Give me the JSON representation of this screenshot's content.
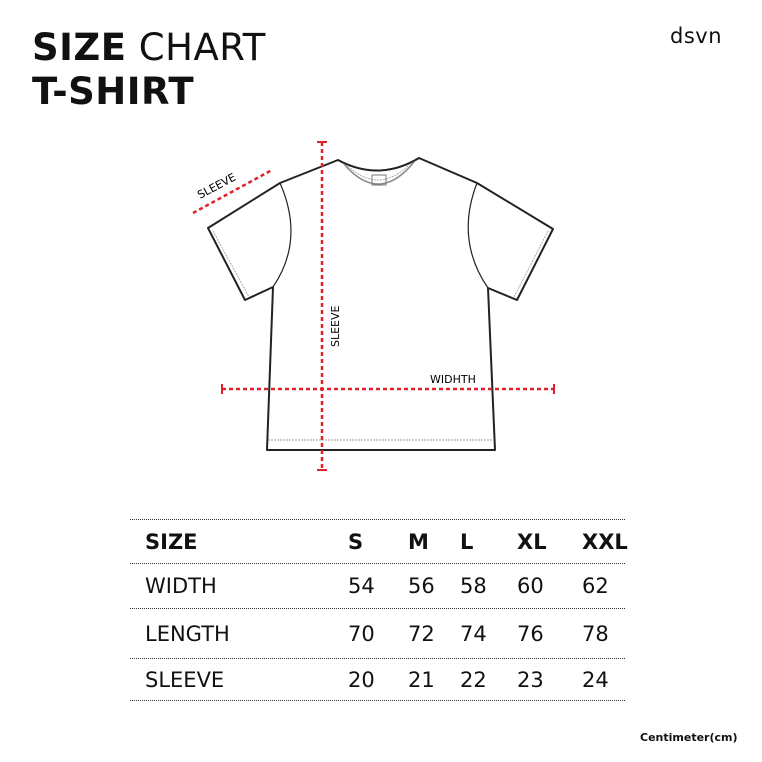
{
  "header": {
    "title_bold": "SIZE",
    "title_light": "CHART",
    "subtitle": "T-SHIRT",
    "logo": "dsvn"
  },
  "diagram": {
    "labels": {
      "sleeve_diagonal": "SLEEVE",
      "sleeve_vertical": "SLEEVE",
      "width": "WIDHTH"
    },
    "measure_color": "#e0202a"
  },
  "table": {
    "header": [
      "SIZE",
      "S",
      "M",
      "L",
      "XL",
      "XXL"
    ],
    "rows": [
      [
        "WIDTH",
        "54",
        "56",
        "58",
        "60",
        "62"
      ],
      [
        "LENGTH",
        "70",
        "72",
        "74",
        "76",
        "78"
      ],
      [
        "SLEEVE",
        "20",
        "21",
        "22",
        "23",
        "24"
      ]
    ]
  },
  "footnote": "Centimeter(cm)"
}
